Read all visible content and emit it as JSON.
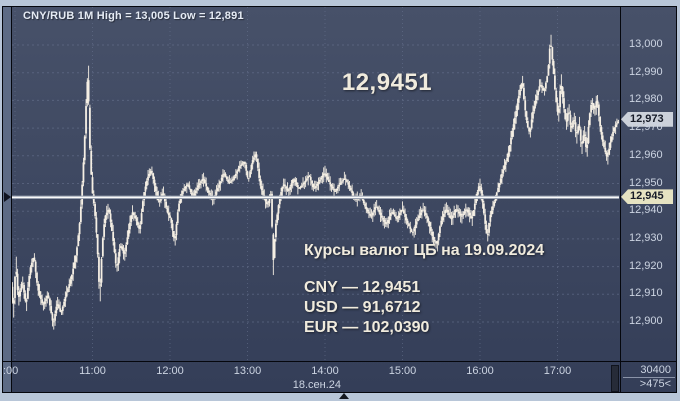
{
  "colors": {
    "outer_border": "#b8c6d8",
    "bg_top": "#475169",
    "bg_bottom": "#343e58",
    "gutter": "#5d6b85",
    "grid": "#6a7591",
    "candle": "#f5efe4",
    "level_line_core": "#fafafa",
    "level_line_edge": "#98a0b0",
    "axis_text": "#ccd4e2",
    "header_text": "#e6ecf5",
    "overlay_text": "#f0ebdd",
    "tag_last": "#ccd1da",
    "tag_level": "#e6e3c2"
  },
  "chart": {
    "header": "CNY/RUB 1M High = 13,005 Low = 12,891",
    "big_price": "12,9451",
    "info": {
      "title": "Курсы валют ЦБ на 19.09.2024",
      "rates": [
        "CNY — 12,9451",
        "USD — 91,6712",
        "EUR — 102,0390"
      ]
    },
    "last_tag": "12,973",
    "level_tag": "12,945",
    "corner": {
      "row1": "30400",
      "row2": ">475<"
    }
  },
  "chart_data": {
    "type": "candlestick",
    "symbol": "CNY/RUB",
    "timeframe": "1M",
    "title": "CNY/RUB 1M High = 13,005 Low = 12,891",
    "prices_in_milliunits": true,
    "session_high": 13005,
    "session_low": 12891,
    "last_price": 12973,
    "marked_level": 12945,
    "bar_count": 475,
    "y_axis": {
      "ticks": [
        13000,
        12990,
        12980,
        12970,
        12960,
        12950,
        12940,
        12930,
        12920,
        12910,
        12900
      ],
      "labels": [
        "13,000",
        "12,990",
        "12,980",
        "12,970",
        "12,960",
        "12,950",
        "12,940",
        "12,930",
        "12,920",
        "12,910",
        "12,900"
      ]
    },
    "x_axis": {
      "tick_minutes": [
        0,
        60,
        120,
        180,
        240,
        300,
        360,
        420
      ],
      "tick_labels": [
        ":00",
        "11:00",
        "12:00",
        "13:00",
        "14:00",
        "15:00",
        "16:00",
        "17:00"
      ],
      "date_label": "18.сен.24"
    },
    "anchors": [
      [
        -6,
        12928
      ],
      [
        -5,
        12908
      ],
      [
        -4,
        12893
      ],
      [
        -3,
        12916
      ],
      [
        -1,
        12904
      ],
      [
        1,
        12921
      ],
      [
        3,
        12908
      ],
      [
        6,
        12915
      ],
      [
        9,
        12906
      ],
      [
        12,
        12919
      ],
      [
        15,
        12924
      ],
      [
        18,
        12912
      ],
      [
        22,
        12906
      ],
      [
        26,
        12910
      ],
      [
        30,
        12899
      ],
      [
        33,
        12907
      ],
      [
        36,
        12903
      ],
      [
        40,
        12910
      ],
      [
        44,
        12916
      ],
      [
        48,
        12925
      ],
      [
        51,
        12938
      ],
      [
        54,
        12962
      ],
      [
        56,
        12984
      ],
      [
        57,
        12990
      ],
      [
        58,
        12967
      ],
      [
        60,
        12948
      ],
      [
        62,
        12941
      ],
      [
        64,
        12929
      ],
      [
        66,
        12909
      ],
      [
        68,
        12928
      ],
      [
        70,
        12938
      ],
      [
        73,
        12941
      ],
      [
        76,
        12931
      ],
      [
        79,
        12919
      ],
      [
        82,
        12928
      ],
      [
        85,
        12924
      ],
      [
        88,
        12932
      ],
      [
        91,
        12940
      ],
      [
        94,
        12937
      ],
      [
        97,
        12933
      ],
      [
        100,
        12946
      ],
      [
        103,
        12952
      ],
      [
        106,
        12955
      ],
      [
        109,
        12948
      ],
      [
        112,
        12943
      ],
      [
        115,
        12947
      ],
      [
        118,
        12940
      ],
      [
        121,
        12937
      ],
      [
        124,
        12929
      ],
      [
        127,
        12942
      ],
      [
        130,
        12947
      ],
      [
        134,
        12950
      ],
      [
        138,
        12945
      ],
      [
        142,
        12949
      ],
      [
        146,
        12952
      ],
      [
        150,
        12947
      ],
      [
        154,
        12944
      ],
      [
        158,
        12949
      ],
      [
        162,
        12954
      ],
      [
        166,
        12950
      ],
      [
        170,
        12952
      ],
      [
        174,
        12956
      ],
      [
        178,
        12958
      ],
      [
        181,
        12951
      ],
      [
        184,
        12958
      ],
      [
        187,
        12961
      ],
      [
        190,
        12950
      ],
      [
        193,
        12945
      ],
      [
        196,
        12942
      ],
      [
        199,
        12947
      ],
      [
        200,
        12919
      ],
      [
        202,
        12934
      ],
      [
        205,
        12944
      ],
      [
        208,
        12950
      ],
      [
        212,
        12947
      ],
      [
        216,
        12952
      ],
      [
        220,
        12948
      ],
      [
        224,
        12950
      ],
      [
        228,
        12953
      ],
      [
        232,
        12948
      ],
      [
        236,
        12951
      ],
      [
        240,
        12954
      ],
      [
        244,
        12950
      ],
      [
        248,
        12947
      ],
      [
        252,
        12950
      ],
      [
        256,
        12952
      ],
      [
        260,
        12948
      ],
      [
        264,
        12944
      ],
      [
        268,
        12946
      ],
      [
        272,
        12941
      ],
      [
        276,
        12938
      ],
      [
        280,
        12942
      ],
      [
        284,
        12938
      ],
      [
        288,
        12935
      ],
      [
        292,
        12940
      ],
      [
        296,
        12937
      ],
      [
        300,
        12941
      ],
      [
        304,
        12936
      ],
      [
        308,
        12932
      ],
      [
        312,
        12937
      ],
      [
        316,
        12941
      ],
      [
        320,
        12937
      ],
      [
        324,
        12930
      ],
      [
        327,
        12928
      ],
      [
        330,
        12936
      ],
      [
        334,
        12941
      ],
      [
        338,
        12937
      ],
      [
        342,
        12941
      ],
      [
        346,
        12938
      ],
      [
        350,
        12941
      ],
      [
        354,
        12937
      ],
      [
        357,
        12944
      ],
      [
        360,
        12950
      ],
      [
        362,
        12945
      ],
      [
        364,
        12937
      ],
      [
        366,
        12930
      ],
      [
        368,
        12938
      ],
      [
        370,
        12941
      ],
      [
        373,
        12946
      ],
      [
        376,
        12951
      ],
      [
        379,
        12956
      ],
      [
        382,
        12960
      ],
      [
        385,
        12968
      ],
      [
        388,
        12975
      ],
      [
        391,
        12983
      ],
      [
        393,
        12987
      ],
      [
        395,
        12978
      ],
      [
        397,
        12971
      ],
      [
        399,
        12968
      ],
      [
        401,
        12975
      ],
      [
        404,
        12981
      ],
      [
        407,
        12986
      ],
      [
        410,
        12983
      ],
      [
        413,
        12990
      ],
      [
        415,
        13002
      ],
      [
        417,
        12992
      ],
      [
        419,
        12981
      ],
      [
        421,
        12974
      ],
      [
        423,
        12987
      ],
      [
        425,
        12979
      ],
      [
        427,
        12971
      ],
      [
        429,
        12977
      ],
      [
        431,
        12969
      ],
      [
        433,
        12974
      ],
      [
        435,
        12967
      ],
      [
        437,
        12972
      ],
      [
        439,
        12963
      ],
      [
        441,
        12969
      ],
      [
        443,
        12961
      ],
      [
        445,
        12974
      ],
      [
        447,
        12980
      ],
      [
        449,
        12976
      ],
      [
        451,
        12981
      ],
      [
        453,
        12972
      ],
      [
        455,
        12966
      ],
      [
        457,
        12962
      ],
      [
        459,
        12959
      ],
      [
        461,
        12964
      ],
      [
        463,
        12968
      ],
      [
        465,
        12971
      ],
      [
        467,
        12972
      ],
      [
        468,
        12973
      ]
    ]
  }
}
